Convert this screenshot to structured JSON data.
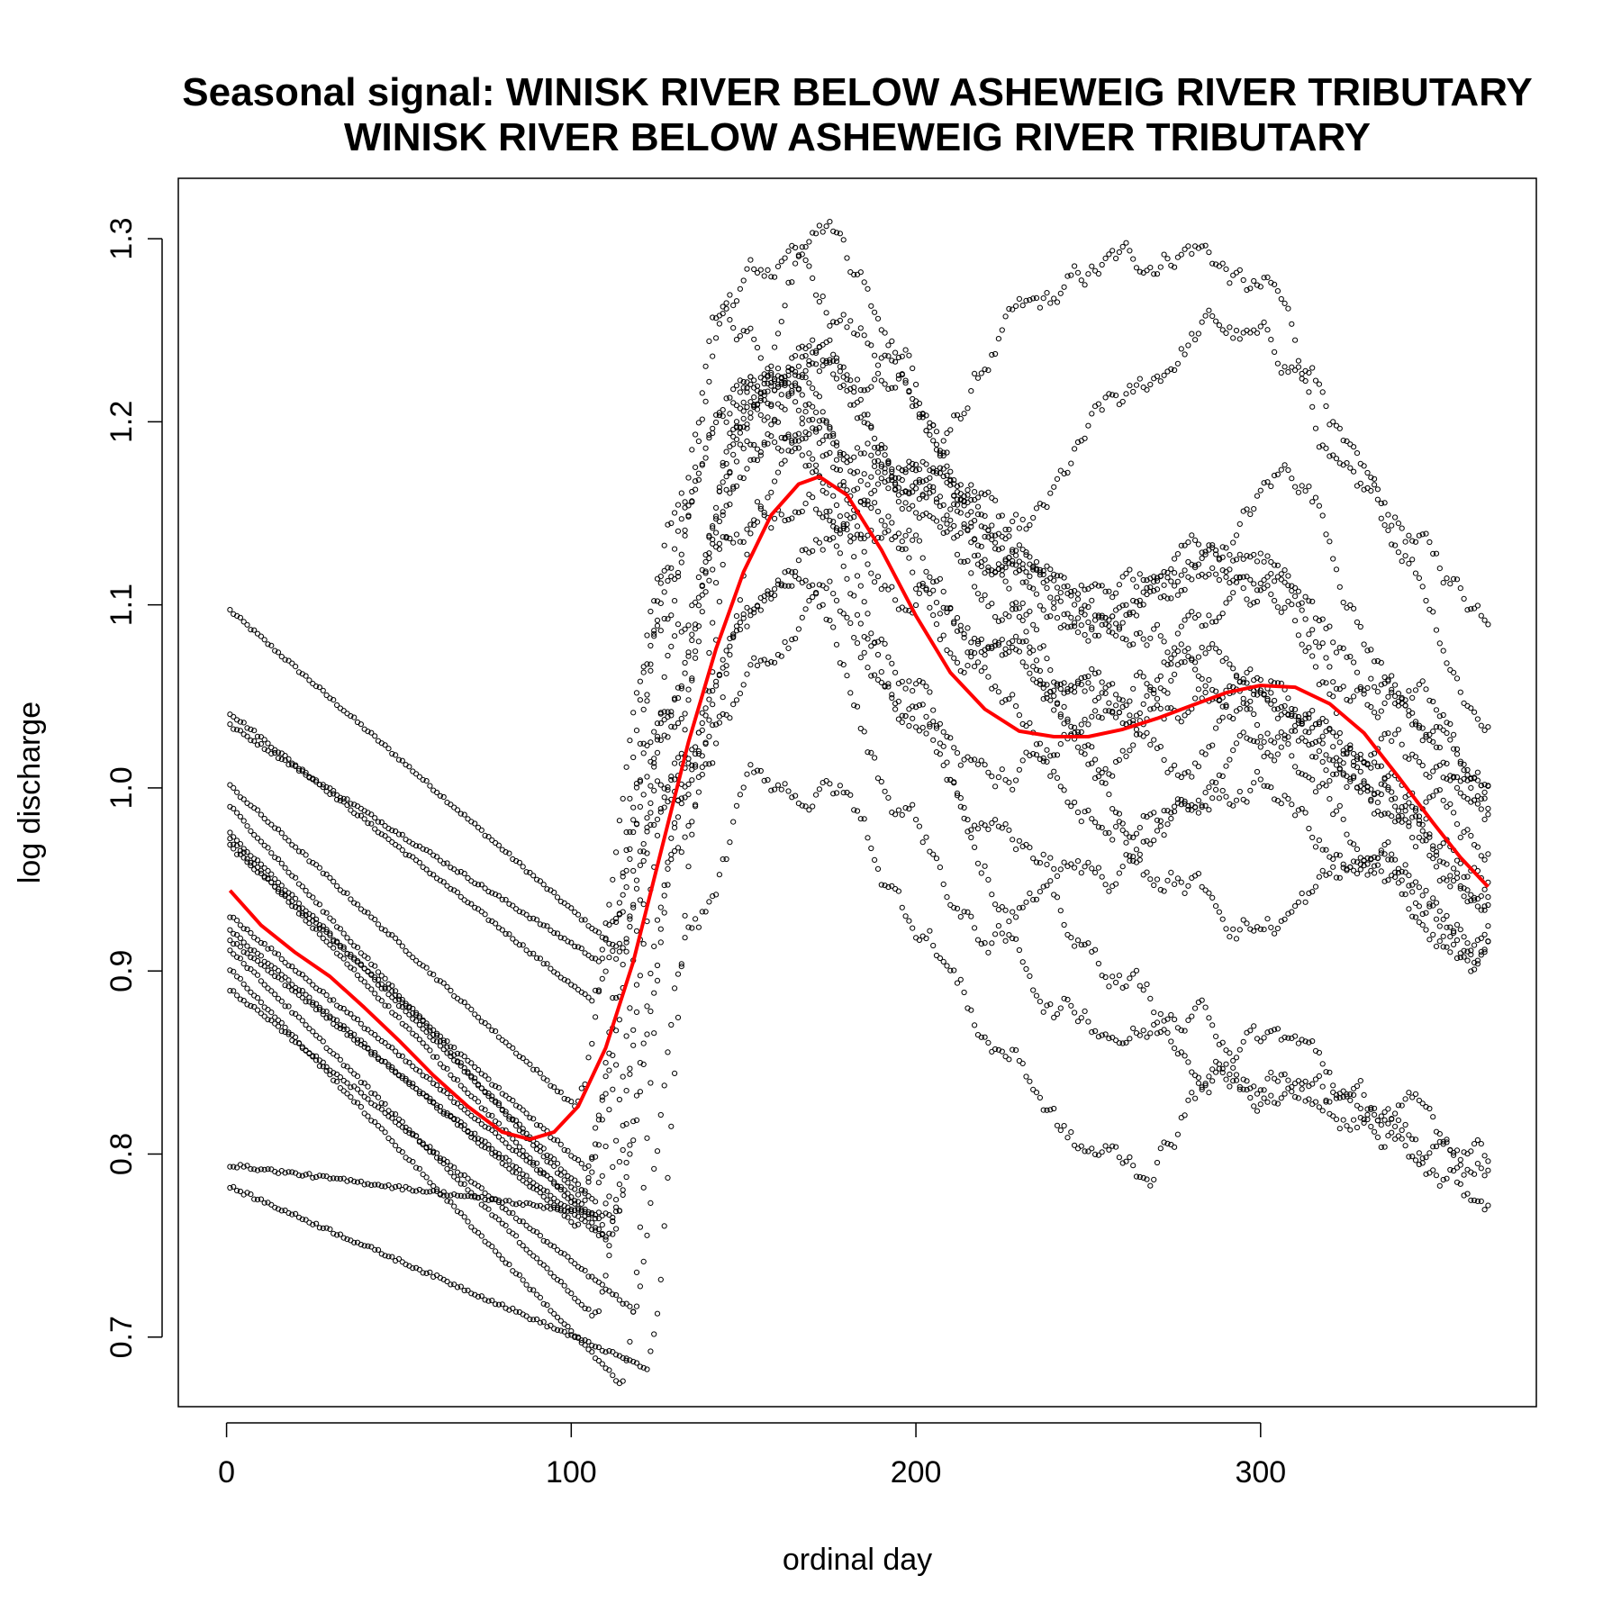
{
  "chart_data": {
    "type": "scatter",
    "title_line1": "Seasonal signal: WINISK RIVER BELOW ASHEWEIG RIVER TRIBUTARY",
    "title_line2": "WINISK RIVER BELOW ASHEWEIG RIVER TRIBUTARY",
    "xlabel": "ordinal day",
    "ylabel": "log discharge",
    "xlim": [
      -14,
      380
    ],
    "ylim": [
      0.662,
      1.333
    ],
    "x_ticks": [
      0,
      100,
      200,
      300
    ],
    "x_tick_labels": [
      "0",
      "100",
      "200",
      "300"
    ],
    "y_ticks": [
      0.7,
      0.8,
      0.9,
      1.0,
      1.1,
      1.2,
      1.3
    ],
    "y_tick_labels": [
      "0.7",
      "0.8",
      "0.9",
      "1.0",
      "1.1",
      "1.2",
      "1.3"
    ],
    "point_color": "#000000",
    "fit_color": "#ff0000",
    "series": [
      {
        "start": [
          1,
          1.097
        ],
        "winter_slope": -0.00165,
        "freshet_day": 112,
        "spring": [
          130,
          1.0,
          150,
          1.09,
          170,
          1.14
        ],
        "summer": [
          200,
          1.17,
          230,
          1.25,
          260,
          1.28,
          280,
          1.3,
          300,
          1.27
        ],
        "end": [
          330,
          1.15,
          366,
          1.1
        ]
      },
      {
        "start": [
          1,
          1.041
        ],
        "winter_slope": -0.0015,
        "freshet_day": 105,
        "spring": [
          128,
          1.05,
          148,
          1.2,
          168,
          1.24
        ],
        "summer": [
          200,
          1.15,
          230,
          1.13,
          260,
          1.2,
          285,
          1.25,
          310,
          1.23
        ],
        "end": [
          340,
          1.13,
          366,
          1.045
        ]
      },
      {
        "start": [
          1,
          1.034
        ],
        "winter_slope": -0.0012,
        "freshet_day": 108,
        "spring": [
          128,
          1.02,
          148,
          1.18,
          165,
          1.23
        ],
        "summer": [
          195,
          1.21,
          225,
          1.12,
          255,
          1.09,
          285,
          1.13,
          310,
          1.17
        ],
        "end": [
          340,
          1.06,
          366,
          1.0
        ]
      },
      {
        "start": [
          1,
          1.001
        ],
        "winter_slope": -0.00175,
        "freshet_day": 100,
        "spring": [
          125,
          1.08,
          145,
          1.22,
          160,
          1.24
        ],
        "summer": [
          190,
          1.18,
          220,
          1.13,
          250,
          1.09,
          280,
          1.12,
          305,
          1.1
        ],
        "end": [
          335,
          1.05,
          366,
          0.992
        ]
      },
      {
        "start": [
          1,
          0.99
        ],
        "winter_slope": -0.0021,
        "freshet_day": 102,
        "spring": [
          128,
          1.1,
          145,
          1.25,
          160,
          1.22
        ],
        "summer": [
          190,
          1.15,
          215,
          1.08,
          240,
          1.05,
          270,
          1.04,
          300,
          1.06
        ],
        "end": [
          335,
          1.02,
          366,
          0.98
        ]
      },
      {
        "start": [
          1,
          0.975
        ],
        "winter_slope": -0.0019,
        "freshet_day": 106,
        "spring": [
          130,
          1.15,
          150,
          1.21,
          170,
          1.18
        ],
        "summer": [
          200,
          1.11,
          230,
          1.06,
          255,
          1.02,
          280,
          1.08,
          305,
          1.1
        ],
        "end": [
          335,
          1.0,
          366,
          0.94
        ]
      },
      {
        "start": [
          1,
          0.972
        ],
        "winter_slope": -0.002,
        "freshet_day": 110,
        "spring": [
          130,
          1.08,
          150,
          1.2,
          170,
          1.23
        ],
        "summer": [
          200,
          1.16,
          225,
          1.09,
          250,
          1.04,
          275,
          1.0,
          300,
          1.06
        ],
        "end": [
          330,
          1.01,
          366,
          0.93
        ]
      },
      {
        "start": [
          1,
          0.968
        ],
        "winter_slope": -0.0017,
        "freshet_day": 104,
        "spring": [
          126,
          1.12,
          145,
          1.26,
          160,
          1.28
        ],
        "summer": [
          185,
          1.24,
          215,
          1.15,
          245,
          1.1,
          275,
          1.12,
          300,
          1.14
        ],
        "end": [
          330,
          1.05,
          366,
          0.99
        ]
      },
      {
        "start": [
          1,
          0.93
        ],
        "winter_slope": -0.00155,
        "freshet_day": 108,
        "spring": [
          128,
          1.05,
          148,
          1.2,
          165,
          1.2
        ],
        "summer": [
          195,
          1.13,
          225,
          1.05,
          250,
          0.99,
          280,
          1.0,
          305,
          1.02
        ],
        "end": [
          335,
          0.96,
          366,
          0.91
        ]
      },
      {
        "start": [
          1,
          0.922
        ],
        "winter_slope": -0.0016,
        "freshet_day": 100,
        "spring": [
          128,
          1.0,
          146,
          1.15,
          165,
          1.17
        ],
        "summer": [
          195,
          1.06,
          225,
          0.97,
          250,
          0.95,
          275,
          0.98,
          300,
          1.0
        ],
        "end": [
          330,
          0.95,
          366,
          0.9
        ]
      },
      {
        "start": [
          1,
          0.917
        ],
        "winter_slope": -0.0015,
        "freshet_day": 110,
        "spring": [
          130,
          0.96,
          150,
          1.1,
          170,
          1.13
        ],
        "summer": [
          200,
          1.04,
          230,
          0.95,
          255,
          0.9,
          280,
          0.87,
          305,
          0.86
        ],
        "end": [
          335,
          0.82,
          366,
          0.795
        ]
      },
      {
        "start": [
          1,
          0.912
        ],
        "winter_slope": -0.0019,
        "freshet_day": 106,
        "spring": [
          130,
          1.0,
          150,
          1.05,
          170,
          1.09
        ],
        "summer": [
          195,
          0.99,
          220,
          0.92,
          245,
          0.88,
          270,
          0.87,
          300,
          0.85
        ],
        "end": [
          330,
          0.82,
          366,
          0.783
        ]
      },
      {
        "start": [
          1,
          0.901
        ],
        "winter_slope": -0.002,
        "freshet_day": 114,
        "spring": [
          133,
          1.0,
          150,
          1.2,
          170,
          1.3
        ],
        "summer": [
          195,
          1.24,
          215,
          1.15,
          240,
          1.05,
          270,
          0.95,
          300,
          0.93
        ],
        "end": [
          330,
          0.95,
          366,
          0.92
        ]
      },
      {
        "start": [
          1,
          0.89
        ],
        "winter_slope": -0.0015,
        "freshet_day": 118,
        "spring": [
          135,
          0.92,
          155,
          1.0,
          175,
          1.0
        ],
        "summer": [
          200,
          0.93,
          225,
          0.86,
          250,
          0.8,
          265,
          0.79,
          285,
          0.84
        ],
        "end": [
          320,
          0.83,
          366,
          0.795
        ]
      },
      {
        "start": [
          1,
          0.794
        ],
        "winter_slope": -0.00025,
        "freshet_day": 112,
        "spring": [
          135,
          1.0,
          152,
          1.2,
          170,
          1.21
        ],
        "summer": [
          200,
          1.18,
          230,
          1.12,
          260,
          1.08,
          290,
          1.07,
          310,
          1.04
        ],
        "end": [
          340,
          0.98,
          366,
          0.95
        ]
      },
      {
        "start": [
          1,
          0.782
        ],
        "winter_slope": -0.00082,
        "freshet_day": 122,
        "spring": [
          138,
          1.0,
          155,
          1.15,
          175,
          1.15
        ],
        "summer": [
          200,
          1.05,
          225,
          1.0,
          250,
          1.02,
          275,
          1.06,
          300,
          1.03
        ],
        "end": [
          335,
          0.99,
          366,
          0.96
        ]
      }
    ],
    "fit_curve": [
      [
        1,
        0.944
      ],
      [
        10,
        0.925
      ],
      [
        20,
        0.91
      ],
      [
        30,
        0.897
      ],
      [
        40,
        0.88
      ],
      [
        50,
        0.862
      ],
      [
        60,
        0.843
      ],
      [
        70,
        0.826
      ],
      [
        80,
        0.812
      ],
      [
        88,
        0.808
      ],
      [
        95,
        0.812
      ],
      [
        102,
        0.826
      ],
      [
        110,
        0.858
      ],
      [
        118,
        0.905
      ],
      [
        126,
        0.965
      ],
      [
        134,
        1.025
      ],
      [
        142,
        1.076
      ],
      [
        150,
        1.118
      ],
      [
        158,
        1.149
      ],
      [
        166,
        1.166
      ],
      [
        172,
        1.17
      ],
      [
        180,
        1.16
      ],
      [
        190,
        1.13
      ],
      [
        200,
        1.094
      ],
      [
        210,
        1.063
      ],
      [
        220,
        1.043
      ],
      [
        230,
        1.031
      ],
      [
        240,
        1.028
      ],
      [
        250,
        1.028
      ],
      [
        260,
        1.032
      ],
      [
        270,
        1.038
      ],
      [
        280,
        1.045
      ],
      [
        290,
        1.052
      ],
      [
        300,
        1.056
      ],
      [
        310,
        1.055
      ],
      [
        320,
        1.046
      ],
      [
        330,
        1.03
      ],
      [
        340,
        1.006
      ],
      [
        350,
        0.981
      ],
      [
        358,
        0.962
      ],
      [
        366,
        0.946
      ]
    ]
  }
}
